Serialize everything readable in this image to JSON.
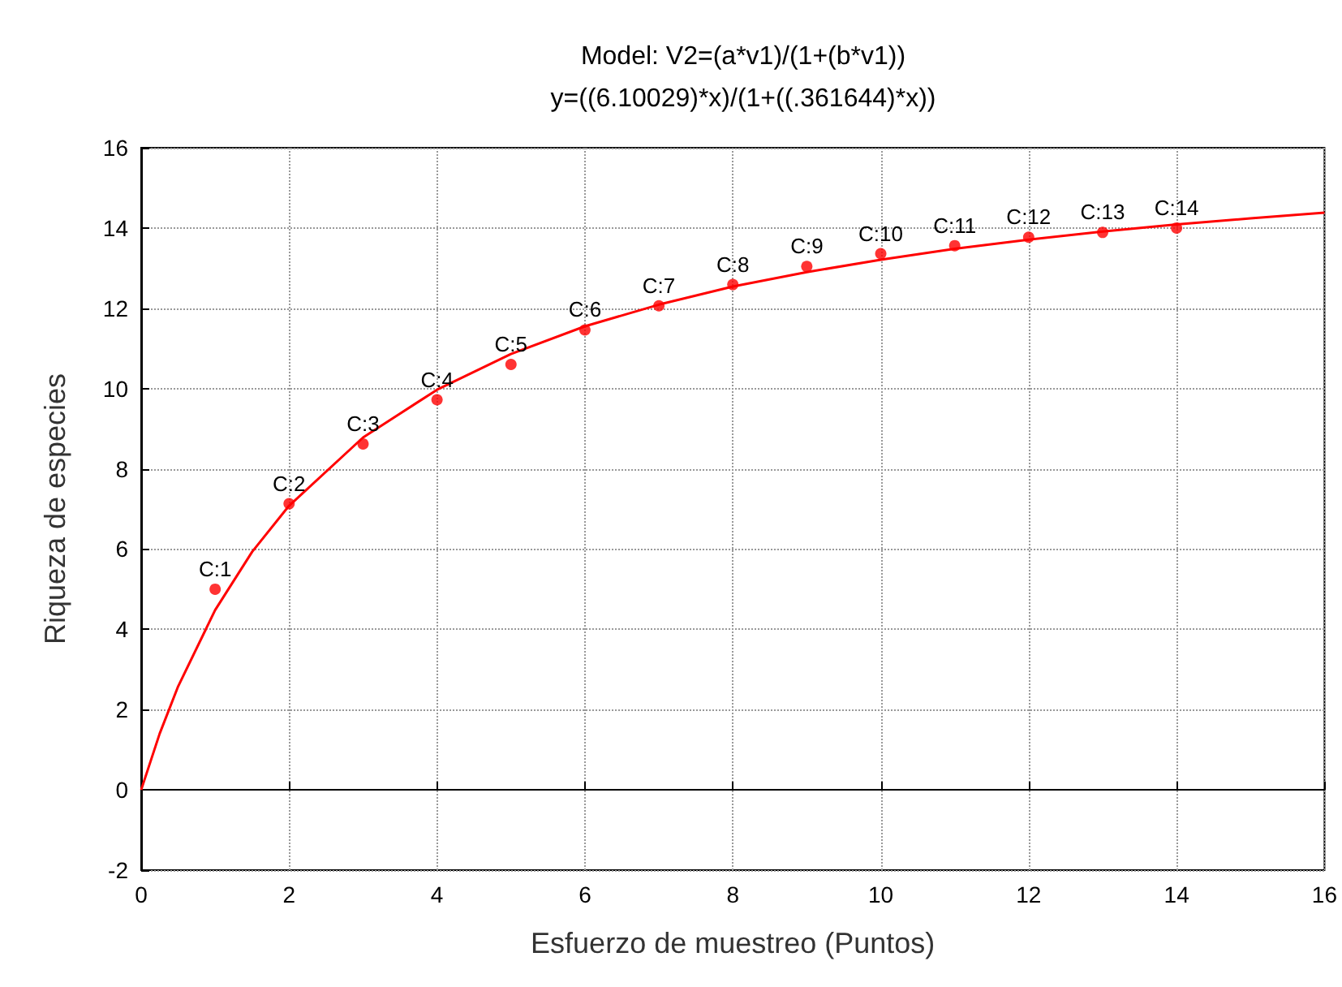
{
  "chart_data": {
    "type": "scatter",
    "title": "Model: V2=(a*v1)/(1+(b*v1))",
    "subtitle": "y=((6.10029)*x)/(1+((.361644)*x))",
    "xlabel": "Esfuerzo de muestreo (Puntos)",
    "ylabel": "Riqueza de especies",
    "xlim": [
      0,
      16
    ],
    "xticks": [
      0,
      2,
      4,
      6,
      8,
      10,
      12,
      14,
      16
    ],
    "ylim": [
      -2,
      16
    ],
    "yticks": [
      -2,
      0,
      2,
      4,
      6,
      8,
      10,
      12,
      14,
      16
    ],
    "grid": true,
    "annotations": [
      {
        "text": "C:1",
        "x": 1,
        "y": 5.0
      },
      {
        "text": "C:2",
        "x": 2,
        "y": 7.13
      },
      {
        "text": "C:3",
        "x": 3,
        "y": 8.62
      },
      {
        "text": "C:4",
        "x": 4,
        "y": 9.72
      },
      {
        "text": "C:5",
        "x": 5,
        "y": 10.6
      },
      {
        "text": "C:6",
        "x": 6,
        "y": 11.46
      },
      {
        "text": "C:7",
        "x": 7,
        "y": 12.06
      },
      {
        "text": "C:8",
        "x": 8,
        "y": 12.59
      },
      {
        "text": "C:9",
        "x": 9,
        "y": 13.04
      },
      {
        "text": "C:10",
        "x": 10,
        "y": 13.36
      },
      {
        "text": "C:11",
        "x": 11,
        "y": 13.56
      },
      {
        "text": "C:12",
        "x": 12,
        "y": 13.77
      },
      {
        "text": "C:13",
        "x": 13,
        "y": 13.89
      },
      {
        "text": "C:14",
        "x": 14,
        "y": 14.0
      }
    ],
    "series": [
      {
        "color": "#ff0000",
        "marker": "circle",
        "x": [
          1,
          2,
          3,
          4,
          5,
          6,
          7,
          8,
          9,
          10,
          11,
          12,
          13,
          14
        ],
        "values": [
          5.0,
          7.13,
          8.62,
          9.72,
          10.6,
          11.46,
          12.06,
          12.59,
          13.04,
          13.36,
          13.56,
          13.77,
          13.89,
          14.0
        ]
      },
      {
        "type": "line",
        "color": "#ff0000",
        "marker": "none",
        "line_style": "solid",
        "x": [
          0,
          0.25,
          0.5,
          1,
          1.5,
          2,
          3,
          4,
          5,
          6,
          7,
          8,
          9,
          10,
          11,
          12,
          13,
          14,
          15,
          16
        ],
        "values": [
          0,
          1.4,
          2.58,
          4.48,
          5.93,
          7.08,
          8.78,
          9.97,
          10.86,
          11.55,
          12.09,
          12.54,
          12.9,
          13.21,
          13.48,
          13.71,
          13.91,
          14.09,
          14.24,
          14.38
        ]
      }
    ]
  }
}
